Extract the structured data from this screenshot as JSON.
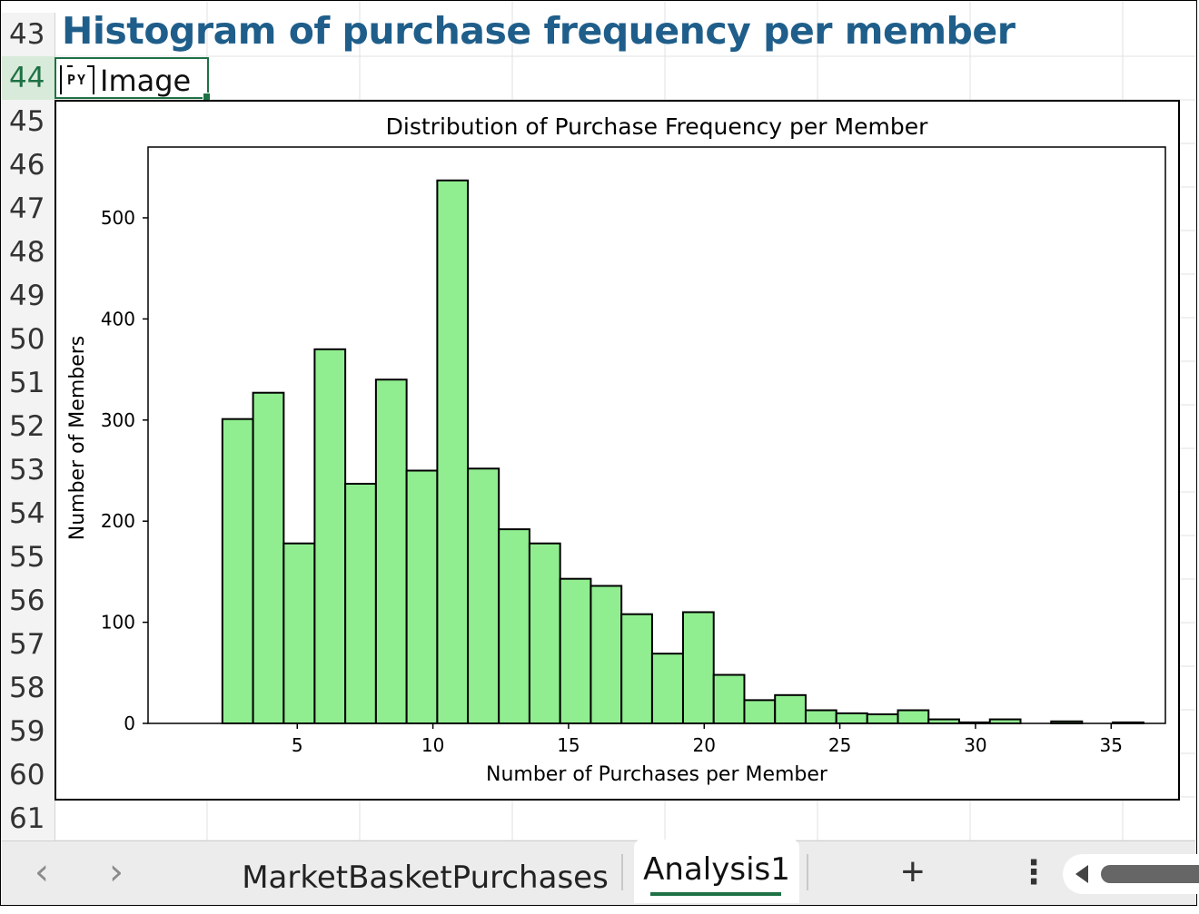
{
  "row_headers": [
    "43",
    "44",
    "45",
    "46",
    "47",
    "48",
    "49",
    "50",
    "51",
    "52",
    "53",
    "54",
    "55",
    "56",
    "57",
    "58",
    "59",
    "60",
    "61"
  ],
  "active_row": "44",
  "title_cell": "Histogram of purchase frequency per member",
  "py_badge": "PY",
  "cell_value": "Image",
  "colors": {
    "bar_fill": "#90ee90",
    "bar_edge": "#000000",
    "title_blue": "#1f5e8a",
    "active_green": "#1e7145"
  },
  "tabs": {
    "prev_icon": "chevron-left-icon",
    "next_icon": "chevron-right-icon",
    "prev_label": "‹",
    "next_label": "›",
    "sheet1": "MarketBasketPurchases",
    "sheet2": "Analysis1",
    "add_label": "+",
    "more_label": "⋮"
  },
  "chart_data": {
    "type": "bar",
    "title": "Distribution of Purchase Frequency per Member",
    "xlabel": "Number of Purchases per Member",
    "ylabel": "Number of Members",
    "xlim": [
      -0.5,
      37
    ],
    "ylim": [
      0,
      570
    ],
    "xticks": [
      5,
      10,
      15,
      20,
      25,
      30,
      35
    ],
    "yticks": [
      0,
      100,
      200,
      300,
      400,
      500
    ],
    "bins": [
      {
        "x0": 2.24,
        "x1": 3.37,
        "value": 301
      },
      {
        "x0": 3.37,
        "x1": 4.5,
        "value": 327
      },
      {
        "x0": 4.5,
        "x1": 5.64,
        "value": 178
      },
      {
        "x0": 5.64,
        "x1": 6.77,
        "value": 370
      },
      {
        "x0": 6.77,
        "x1": 7.9,
        "value": 237
      },
      {
        "x0": 7.9,
        "x1": 9.03,
        "value": 340
      },
      {
        "x0": 9.03,
        "x1": 10.16,
        "value": 250
      },
      {
        "x0": 10.16,
        "x1": 11.29,
        "value": 537
      },
      {
        "x0": 11.29,
        "x1": 12.43,
        "value": 252
      },
      {
        "x0": 12.43,
        "x1": 13.56,
        "value": 192
      },
      {
        "x0": 13.56,
        "x1": 14.69,
        "value": 178
      },
      {
        "x0": 14.69,
        "x1": 15.82,
        "value": 143
      },
      {
        "x0": 15.82,
        "x1": 16.95,
        "value": 136
      },
      {
        "x0": 16.95,
        "x1": 18.08,
        "value": 108
      },
      {
        "x0": 18.08,
        "x1": 19.22,
        "value": 69
      },
      {
        "x0": 19.22,
        "x1": 20.35,
        "value": 110
      },
      {
        "x0": 20.35,
        "x1": 21.48,
        "value": 48
      },
      {
        "x0": 21.48,
        "x1": 22.61,
        "value": 23
      },
      {
        "x0": 22.61,
        "x1": 23.74,
        "value": 28
      },
      {
        "x0": 23.74,
        "x1": 24.87,
        "value": 13
      },
      {
        "x0": 24.87,
        "x1": 26.01,
        "value": 10
      },
      {
        "x0": 26.01,
        "x1": 27.14,
        "value": 9
      },
      {
        "x0": 27.14,
        "x1": 28.27,
        "value": 13
      },
      {
        "x0": 28.27,
        "x1": 29.4,
        "value": 4
      },
      {
        "x0": 29.4,
        "x1": 30.53,
        "value": 1
      },
      {
        "x0": 30.53,
        "x1": 31.66,
        "value": 4
      },
      {
        "x0": 31.66,
        "x1": 32.79,
        "value": 0
      },
      {
        "x0": 32.79,
        "x1": 33.93,
        "value": 2
      },
      {
        "x0": 33.93,
        "x1": 35.06,
        "value": 0
      },
      {
        "x0": 35.06,
        "x1": 36.19,
        "value": 1
      }
    ]
  }
}
